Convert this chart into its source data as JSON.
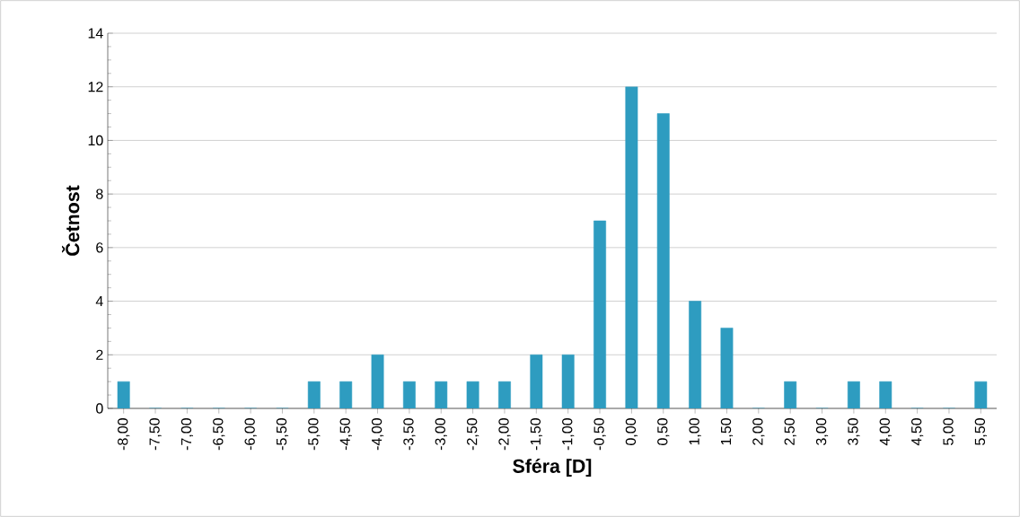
{
  "chart_data": {
    "type": "bar",
    "xlabel": "Sféra [D]",
    "ylabel": "Četnost",
    "categories": [
      "-8,00",
      "-7,50",
      "-7,00",
      "-6,50",
      "-6,00",
      "-5,50",
      "-5,00",
      "-4,50",
      "-4,00",
      "-3,50",
      "-3,00",
      "-2,50",
      "-2,00",
      "-1,50",
      "-1,00",
      "-0,50",
      "0,00",
      "0,50",
      "1,00",
      "1,50",
      "2,00",
      "2,50",
      "3,00",
      "3,50",
      "4,00",
      "4,50",
      "5,00",
      "5,50"
    ],
    "values": [
      1,
      0,
      0,
      0,
      0,
      0,
      1,
      1,
      2,
      1,
      1,
      1,
      1,
      2,
      2,
      7,
      12,
      11,
      4,
      3,
      0,
      1,
      0,
      1,
      1,
      0,
      0,
      1
    ],
    "color": "#2e9cc0",
    "ylim": [
      0,
      14
    ],
    "yticks": [
      0,
      2,
      4,
      6,
      8,
      10,
      12,
      14
    ],
    "grid": "y"
  }
}
